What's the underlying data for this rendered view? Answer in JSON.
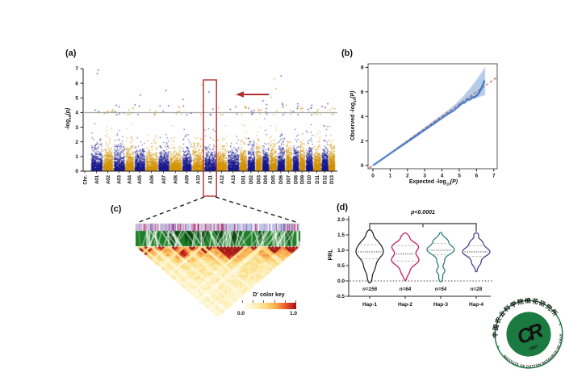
{
  "panels": {
    "a": "(a)",
    "b": "(b)",
    "c": "(c)",
    "d": "(d)"
  },
  "chart_data": [
    {
      "id": "manhattan_gwas",
      "type": "scatter",
      "panel": "a",
      "ylabel": {
        "prefix": "-log",
        "sub": "10",
        "suffix": "(p)"
      },
      "ylim": [
        0,
        7
      ],
      "yticks": [
        0,
        1,
        2,
        3,
        4,
        5,
        6,
        7
      ],
      "threshold_line": 4,
      "categories": [
        "Chr.",
        "A01",
        "A02",
        "A03",
        "A04",
        "A05",
        "A06",
        "A07",
        "A08",
        "A09",
        "A10",
        "A11",
        "A12",
        "A13",
        "D01",
        "D02",
        "D03",
        "D04",
        "D05",
        "D06",
        "D07",
        "D08",
        "D09",
        "D10",
        "D11",
        "D12",
        "D13"
      ],
      "relative_widths": [
        1.35,
        1.15,
        1.3,
        1.0,
        1.25,
        1.4,
        1.25,
        1.4,
        1.1,
        1.35,
        1.35,
        1.2,
        1.35,
        0.85,
        0.9,
        0.75,
        0.8,
        0.85,
        0.9,
        0.8,
        0.75,
        0.7,
        0.85,
        0.9,
        0.8,
        0.75
      ],
      "peak_values": [
        6.9,
        4.2,
        4.5,
        4.3,
        5.2,
        4.2,
        5.5,
        4.4,
        4.9,
        5.9,
        5.4,
        4.3,
        4.4,
        4.4,
        4.3,
        4.2,
        4.8,
        6.3,
        6.5,
        4.5,
        4.6,
        4.3,
        4.5,
        4.2,
        4.6,
        4.3
      ],
      "highlight_chrom": "A11",
      "colors": {
        "odd_chrom": "#18188c",
        "even_chrom": "#d29200",
        "threshold": "#8c8c8c",
        "highlight_box": "#b03030",
        "arrow": "#b03030"
      }
    },
    {
      "id": "qq_plot",
      "type": "line",
      "panel": "b",
      "xlabel": {
        "prefix": "Expected -log",
        "sub": "10",
        "suffix": "(P)"
      },
      "ylabel": {
        "prefix": "Observed -log",
        "sub": "10",
        "suffix": "(P)"
      },
      "xlim": [
        0,
        7
      ],
      "ylim": [
        0,
        8
      ],
      "xticks": [
        0,
        1,
        2,
        3,
        4,
        5,
        6,
        7
      ],
      "yticks": [
        0,
        2,
        4,
        6,
        8
      ],
      "observed_curve": [
        [
          0,
          0
        ],
        [
          0.5,
          0.48
        ],
        [
          1,
          0.97
        ],
        [
          1.5,
          1.45
        ],
        [
          2,
          1.93
        ],
        [
          2.5,
          2.41
        ],
        [
          3,
          2.9
        ],
        [
          3.5,
          3.38
        ],
        [
          4,
          3.86
        ],
        [
          4.4,
          4.25
        ],
        [
          4.7,
          4.5
        ],
        [
          5,
          4.85
        ],
        [
          5.15,
          5.08
        ],
        [
          5.3,
          5.1
        ],
        [
          5.45,
          5.35
        ],
        [
          5.6,
          5.38
        ],
        [
          5.75,
          5.55
        ],
        [
          5.9,
          5.58
        ],
        [
          6.05,
          5.75
        ],
        [
          6.15,
          5.95
        ],
        [
          6.25,
          6.2
        ],
        [
          6.35,
          6.5
        ],
        [
          6.45,
          6.88
        ]
      ],
      "confidence_band_max_x": 6.5,
      "colors": {
        "observed": "#2f6fc1",
        "band": "#b5cce9",
        "diagonal": "#c04040"
      }
    },
    {
      "id": "ld_heatmap",
      "type": "heatmap",
      "panel": "c",
      "snp_count": 48,
      "block_sizes": [
        6,
        4,
        8,
        5,
        9,
        4,
        7,
        5
      ],
      "color_key": {
        "title": "D' color key",
        "min_label": "0.0",
        "max_label": "1.0",
        "palette": [
          [
            0,
            "#fffef8"
          ],
          [
            0.25,
            "#fdf0b8"
          ],
          [
            0.45,
            "#fcd878"
          ],
          [
            0.62,
            "#fbab4b"
          ],
          [
            0.78,
            "#ee6530"
          ],
          [
            0.9,
            "#d32f1e"
          ],
          [
            1,
            "#9c1210"
          ]
        ]
      },
      "track_colors": {
        "background": "#b9c6e6",
        "pink": "#e08ab2",
        "crimson": "#c23a6e",
        "purple": "#8a68b8",
        "gene_band": "#1e7e28"
      }
    },
    {
      "id": "haplotype_violin",
      "type": "violin",
      "panel": "d",
      "ylabel": "PRL",
      "ylim": [
        -0.5,
        2.0
      ],
      "yticks": [
        {
          "label": "2.0",
          "value": 2
        },
        {
          "label": "1.5",
          "value": 1.5
        },
        {
          "label": "1.0",
          "value": 1
        },
        {
          "label": "0.5",
          "value": 0.5
        },
        {
          "label": "0.0",
          "value": 0
        },
        {
          "label": "-0.5",
          "value": -0.5
        }
      ],
      "significance": "p<0.0001",
      "zero_line": 0,
      "groups": [
        {
          "label": "Hap-1",
          "n_label": "n=156",
          "color": "#262626",
          "range": [
            -0.06,
            1.66
          ],
          "median": 0.95,
          "q1": 0.72,
          "q3": 1.18,
          "bumps": [
            {
              "c": 0.93,
              "s": 0.2,
              "a": 1
            },
            {
              "c": 1.25,
              "s": 0.16,
              "a": 0.4
            },
            {
              "c": 0.45,
              "s": 0.18,
              "a": 0.32
            },
            {
              "c": 1.55,
              "s": 0.07,
              "a": 0.1
            },
            {
              "c": 0.08,
              "s": 0.08,
              "a": 0.06
            }
          ]
        },
        {
          "label": "Hap-2",
          "n_label": "n=64",
          "color": "#c21d5e",
          "range": [
            0.02,
            1.56
          ],
          "median": 0.88,
          "q1": 0.65,
          "q3": 1.15,
          "bumps": [
            {
              "c": 1.12,
              "s": 0.15,
              "a": 0.8
            },
            {
              "c": 0.68,
              "s": 0.17,
              "a": 0.85
            },
            {
              "c": 1.45,
              "s": 0.06,
              "a": 0.12
            },
            {
              "c": 0.28,
              "s": 0.1,
              "a": 0.15
            }
          ]
        },
        {
          "label": "Hap-3",
          "n_label": "n=54",
          "color": "#2f7d7d",
          "range": [
            -0.02,
            1.58
          ],
          "median": 1.0,
          "q1": 0.85,
          "q3": 1.22,
          "bumps": [
            {
              "c": 1.02,
              "s": 0.15,
              "a": 0.9
            },
            {
              "c": 1.33,
              "s": 0.09,
              "a": 0.3
            },
            {
              "c": 0.62,
              "s": 0.09,
              "a": 0.15
            },
            {
              "c": 0.33,
              "s": 0.08,
              "a": 0.2
            },
            {
              "c": 0.1,
              "s": 0.06,
              "a": 0.06
            }
          ]
        },
        {
          "label": "Hap-4",
          "n_label": "n=28",
          "color": "#4b3d8f",
          "range": [
            0.3,
            1.56
          ],
          "median": 0.95,
          "q1": 0.8,
          "q3": 1.15,
          "bumps": [
            {
              "c": 0.95,
              "s": 0.15,
              "a": 0.95
            },
            {
              "c": 1.27,
              "s": 0.09,
              "a": 0.28
            },
            {
              "c": 1.5,
              "s": 0.05,
              "a": 0.08
            },
            {
              "c": 0.58,
              "s": 0.09,
              "a": 0.2
            }
          ]
        }
      ]
    }
  ],
  "logo": {
    "ring_top": "中国农业科学院棉花研究所",
    "ring_bottom": "INSTITUTE OF COTTON RESEARCH OF CAAS",
    "year": "1957",
    "monogram": "CR",
    "green": "#1b7a40"
  }
}
